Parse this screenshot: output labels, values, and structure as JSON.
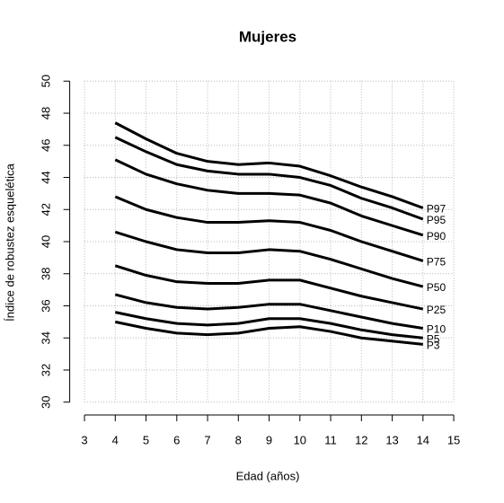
{
  "chart_data": {
    "type": "line",
    "title": "Mujeres",
    "x_label": "Edad (años)",
    "y_label": "Índice de robustez esquelética",
    "x": [
      4,
      5,
      6,
      7,
      8,
      9,
      10,
      11,
      12,
      13,
      14
    ],
    "series": [
      {
        "name": "P97",
        "color": "#000000",
        "values": [
          47.4,
          46.4,
          45.5,
          45.0,
          44.8,
          44.9,
          44.7,
          44.1,
          43.4,
          42.8,
          42.1
        ]
      },
      {
        "name": "P95",
        "color": "#000000",
        "values": [
          46.5,
          45.6,
          44.8,
          44.4,
          44.2,
          44.2,
          44.0,
          43.5,
          42.7,
          42.1,
          41.4
        ]
      },
      {
        "name": "P90",
        "color": "#000000",
        "values": [
          45.1,
          44.2,
          43.6,
          43.2,
          43.0,
          43.0,
          42.9,
          42.4,
          41.6,
          41.0,
          40.4
        ]
      },
      {
        "name": "P75",
        "color": "#000000",
        "values": [
          42.8,
          42.0,
          41.5,
          41.2,
          41.2,
          41.3,
          41.2,
          40.7,
          40.0,
          39.4,
          38.8
        ]
      },
      {
        "name": "P50",
        "color": "#000000",
        "values": [
          40.6,
          40.0,
          39.5,
          39.3,
          39.3,
          39.5,
          39.4,
          38.9,
          38.3,
          37.7,
          37.2
        ]
      },
      {
        "name": "P25",
        "color": "#000000",
        "values": [
          38.5,
          37.9,
          37.5,
          37.4,
          37.4,
          37.6,
          37.6,
          37.1,
          36.6,
          36.2,
          35.8
        ]
      },
      {
        "name": "P10",
        "color": "#000000",
        "values": [
          36.7,
          36.2,
          35.9,
          35.8,
          35.9,
          36.1,
          36.1,
          35.7,
          35.3,
          34.9,
          34.6
        ]
      },
      {
        "name": "P5",
        "color": "#000000",
        "values": [
          35.6,
          35.2,
          34.9,
          34.8,
          34.9,
          35.2,
          35.2,
          34.9,
          34.5,
          34.2,
          34.0
        ]
      },
      {
        "name": "P3",
        "color": "#000000",
        "values": [
          35.0,
          34.6,
          34.3,
          34.2,
          34.3,
          34.6,
          34.7,
          34.4,
          34.0,
          33.8,
          33.6
        ]
      }
    ],
    "xlim": [
      2.52,
      15.48
    ],
    "ylim": [
      29.2,
      50.8
    ],
    "xticks": [
      3,
      4,
      5,
      6,
      7,
      8,
      9,
      10,
      11,
      12,
      13,
      14,
      15
    ],
    "yticks": [
      30,
      32,
      34,
      36,
      38,
      40,
      42,
      44,
      46,
      48,
      50
    ],
    "grid": true
  }
}
